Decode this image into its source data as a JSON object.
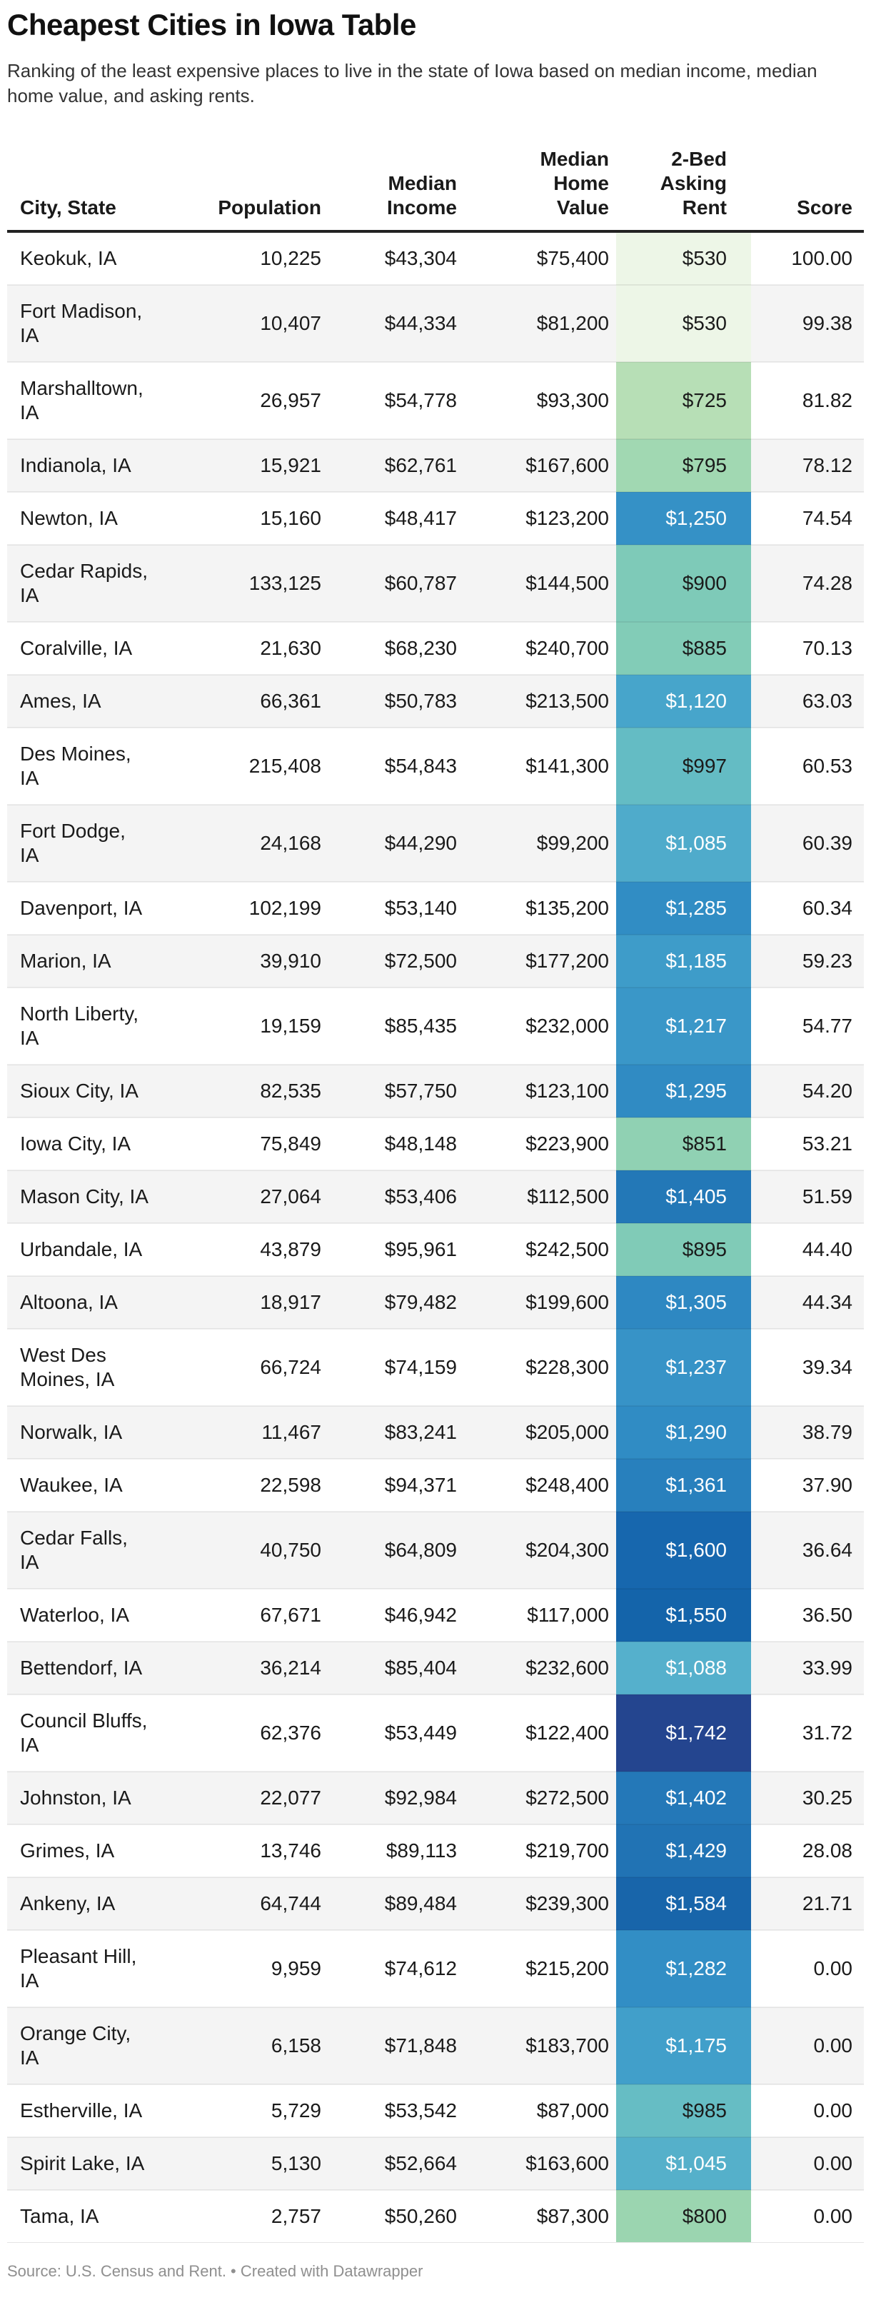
{
  "header": {
    "title": "Cheapest Cities in Iowa Table",
    "subtitle": "Ranking of the least expensive places to live in the state of Iowa based on median income, median home value, and asking rents."
  },
  "footer": {
    "source_note": "Source: U.S. Census and Rent. • Created with Datawrapper"
  },
  "colors": {
    "header_rule": "#222222",
    "row_stripe": "#f4f4f4",
    "body_text": "#1a1a1a",
    "subtitle_text": "#333333",
    "footer_text": "#8f8f8f",
    "rent_scale_min": "#edf6e7",
    "rent_scale_max": "#24458f"
  },
  "table": {
    "columns": [
      {
        "label": "City, State"
      },
      {
        "label": "Population"
      },
      {
        "label": "Median\nIncome"
      },
      {
        "label": "Median\nHome\nValue"
      },
      {
        "label": "2-Bed\nAsking\nRent"
      },
      {
        "label": "Score"
      }
    ],
    "rows": [
      {
        "city": "Keokuk, IA",
        "population": "10,225",
        "income": "$43,304",
        "home_value": "$75,400",
        "rent": "$530",
        "score": "100.00",
        "rent_bg": "#edf6e7",
        "rent_fg": "#1a1a1a"
      },
      {
        "city": "Fort Madison, IA",
        "population": "10,407",
        "income": "$44,334",
        "home_value": "$81,200",
        "rent": "$530",
        "score": "99.38",
        "rent_bg": "#edf6e7",
        "rent_fg": "#1a1a1a"
      },
      {
        "city": "Marshalltown, IA",
        "population": "26,957",
        "income": "$54,778",
        "home_value": "$93,300",
        "rent": "$725",
        "score": "81.82",
        "rent_bg": "#b7dfb6",
        "rent_fg": "#1a1a1a"
      },
      {
        "city": "Indianola, IA",
        "population": "15,921",
        "income": "$62,761",
        "home_value": "$167,600",
        "rent": "$795",
        "score": "78.12",
        "rent_bg": "#a1d8b2",
        "rent_fg": "#1a1a1a"
      },
      {
        "city": "Newton, IA",
        "population": "15,160",
        "income": "$48,417",
        "home_value": "$123,200",
        "rent": "$1,250",
        "score": "74.54",
        "rent_bg": "#3591c6",
        "rent_fg": "#ffffff"
      },
      {
        "city": "Cedar Rapids, IA",
        "population": "133,125",
        "income": "$60,787",
        "home_value": "$144,500",
        "rent": "$900",
        "score": "74.28",
        "rent_bg": "#7ecab8",
        "rent_fg": "#1a1a1a"
      },
      {
        "city": "Coralville, IA",
        "population": "21,630",
        "income": "$68,230",
        "home_value": "$240,700",
        "rent": "$885",
        "score": "70.13",
        "rent_bg": "#82ccb7",
        "rent_fg": "#1a1a1a"
      },
      {
        "city": "Ames, IA",
        "population": "66,361",
        "income": "$50,783",
        "home_value": "$213,500",
        "rent": "$1,120",
        "score": "63.03",
        "rent_bg": "#47a5cb",
        "rent_fg": "#ffffff"
      },
      {
        "city": "Des Moines, IA",
        "population": "215,408",
        "income": "$54,843",
        "home_value": "$141,300",
        "rent": "$997",
        "score": "60.53",
        "rent_bg": "#64bcc4",
        "rent_fg": "#1a1a1a"
      },
      {
        "city": "Fort Dodge, IA",
        "population": "24,168",
        "income": "$44,290",
        "home_value": "$99,200",
        "rent": "$1,085",
        "score": "60.39",
        "rent_bg": "#4fabcb",
        "rent_fg": "#ffffff"
      },
      {
        "city": "Davenport, IA",
        "population": "102,199",
        "income": "$53,140",
        "home_value": "$135,200",
        "rent": "$1,285",
        "score": "60.34",
        "rent_bg": "#318dc4",
        "rent_fg": "#ffffff"
      },
      {
        "city": "Marion, IA",
        "population": "39,910",
        "income": "$72,500",
        "home_value": "$177,200",
        "rent": "$1,185",
        "score": "59.23",
        "rent_bg": "#3e9cc9",
        "rent_fg": "#ffffff"
      },
      {
        "city": "North Liberty, IA",
        "population": "19,159",
        "income": "$85,435",
        "home_value": "$232,000",
        "rent": "$1,217",
        "score": "54.77",
        "rent_bg": "#3a97c8",
        "rent_fg": "#ffffff"
      },
      {
        "city": "Sioux City, IA",
        "population": "82,535",
        "income": "$57,750",
        "home_value": "$123,100",
        "rent": "$1,295",
        "score": "54.20",
        "rent_bg": "#308bc3",
        "rent_fg": "#ffffff"
      },
      {
        "city": "Iowa City, IA",
        "population": "75,849",
        "income": "$48,148",
        "home_value": "$223,900",
        "rent": "$851",
        "score": "53.21",
        "rent_bg": "#90d1b3",
        "rent_fg": "#1a1a1a"
      },
      {
        "city": "Mason City, IA",
        "population": "27,064",
        "income": "$53,406",
        "home_value": "$112,500",
        "rent": "$1,405",
        "score": "51.59",
        "rent_bg": "#2378b7",
        "rent_fg": "#ffffff"
      },
      {
        "city": "Urbandale, IA",
        "population": "43,879",
        "income": "$95,961",
        "home_value": "$242,500",
        "rent": "$895",
        "score": "44.40",
        "rent_bg": "#80cbb7",
        "rent_fg": "#1a1a1a"
      },
      {
        "city": "Altoona, IA",
        "population": "18,917",
        "income": "$79,482",
        "home_value": "$199,600",
        "rent": "$1,305",
        "score": "44.34",
        "rent_bg": "#2e88c2",
        "rent_fg": "#ffffff"
      },
      {
        "city": "West Des Moines, IA",
        "population": "66,724",
        "income": "$74,159",
        "home_value": "$228,300",
        "rent": "$1,237",
        "score": "39.34",
        "rent_bg": "#3793c7",
        "rent_fg": "#ffffff"
      },
      {
        "city": "Norwalk, IA",
        "population": "11,467",
        "income": "$83,241",
        "home_value": "$205,000",
        "rent": "$1,290",
        "score": "38.79",
        "rent_bg": "#308cc4",
        "rent_fg": "#ffffff"
      },
      {
        "city": "Waukee, IA",
        "population": "22,598",
        "income": "$94,371",
        "home_value": "$248,400",
        "rent": "$1,361",
        "score": "37.90",
        "rent_bg": "#2880bd",
        "rent_fg": "#ffffff"
      },
      {
        "city": "Cedar Falls, IA",
        "population": "40,750",
        "income": "$64,809",
        "home_value": "$204,300",
        "rent": "$1,600",
        "score": "36.64",
        "rent_bg": "#1767ae",
        "rent_fg": "#ffffff"
      },
      {
        "city": "Waterloo, IA",
        "population": "67,671",
        "income": "$46,942",
        "home_value": "$117,000",
        "rent": "$1,550",
        "score": "36.50",
        "rent_bg": "#1464aa",
        "rent_fg": "#ffffff"
      },
      {
        "city": "Bettendorf, IA",
        "population": "36,214",
        "income": "$85,404",
        "home_value": "$232,600",
        "rent": "$1,088",
        "score": "33.99",
        "rent_bg": "#55b0cc",
        "rent_fg": "#ffffff"
      },
      {
        "city": "Council Bluffs, IA",
        "population": "62,376",
        "income": "$53,449",
        "home_value": "$122,400",
        "rent": "$1,742",
        "score": "31.72",
        "rent_bg": "#24458f",
        "rent_fg": "#ffffff"
      },
      {
        "city": "Johnston, IA",
        "population": "22,077",
        "income": "$92,984",
        "home_value": "$272,500",
        "rent": "$1,402",
        "score": "30.25",
        "rent_bg": "#2478b8",
        "rent_fg": "#ffffff"
      },
      {
        "city": "Grimes, IA",
        "population": "13,746",
        "income": "$89,113",
        "home_value": "$219,700",
        "rent": "$1,429",
        "score": "28.08",
        "rent_bg": "#2173b4",
        "rent_fg": "#ffffff"
      },
      {
        "city": "Ankeny, IA",
        "population": "64,744",
        "income": "$89,484",
        "home_value": "$239,300",
        "rent": "$1,584",
        "score": "21.71",
        "rent_bg": "#1865aa",
        "rent_fg": "#ffffff"
      },
      {
        "city": "Pleasant Hill, IA",
        "population": "9,959",
        "income": "$74,612",
        "home_value": "$215,200",
        "rent": "$1,282",
        "score": "0.00",
        "rent_bg": "#328ec5",
        "rent_fg": "#ffffff"
      },
      {
        "city": "Orange City, IA",
        "population": "6,158",
        "income": "$71,848",
        "home_value": "$183,700",
        "rent": "$1,175",
        "score": "0.00",
        "rent_bg": "#419fca",
        "rent_fg": "#ffffff"
      },
      {
        "city": "Estherville, IA",
        "population": "5,729",
        "income": "$53,542",
        "home_value": "$87,000",
        "rent": "$985",
        "score": "0.00",
        "rent_bg": "#66bdc4",
        "rent_fg": "#1a1a1a"
      },
      {
        "city": "Spirit Lake, IA",
        "population": "5,130",
        "income": "$52,664",
        "home_value": "$163,600",
        "rent": "$1,045",
        "score": "0.00",
        "rent_bg": "#55b0ca",
        "rent_fg": "#ffffff"
      },
      {
        "city": "Tama, IA",
        "population": "2,757",
        "income": "$50,260",
        "home_value": "$87,300",
        "rent": "$800",
        "score": "0.00",
        "rent_bg": "#9bd5b0",
        "rent_fg": "#1a1a1a"
      }
    ]
  },
  "chart_data": {
    "type": "table",
    "title": "Cheapest Cities in Iowa Table",
    "subtitle": "Ranking of the least expensive places to live in the state of Iowa based on median income, median home value, and asking rents.",
    "columns": [
      "City, State",
      "Population",
      "Median Income",
      "Median Home Value",
      "2-Bed Asking Rent",
      "Score"
    ],
    "heatmap_column": "2-Bed Asking Rent",
    "heatmap_scale": {
      "low_color": "#edf6e7",
      "mid_color": "#4eb3d3",
      "high_color": "#24458f",
      "low_value": 530,
      "high_value": 1742
    },
    "rows": [
      [
        "Keokuk, IA",
        10225,
        43304,
        75400,
        530,
        100.0
      ],
      [
        "Fort Madison, IA",
        10407,
        44334,
        81200,
        530,
        99.38
      ],
      [
        "Marshalltown, IA",
        26957,
        54778,
        93300,
        725,
        81.82
      ],
      [
        "Indianola, IA",
        15921,
        62761,
        167600,
        795,
        78.12
      ],
      [
        "Newton, IA",
        15160,
        48417,
        123200,
        1250,
        74.54
      ],
      [
        "Cedar Rapids, IA",
        133125,
        60787,
        144500,
        900,
        74.28
      ],
      [
        "Coralville, IA",
        21630,
        68230,
        240700,
        885,
        70.13
      ],
      [
        "Ames, IA",
        66361,
        50783,
        213500,
        1120,
        63.03
      ],
      [
        "Des Moines, IA",
        215408,
        54843,
        141300,
        997,
        60.53
      ],
      [
        "Fort Dodge, IA",
        24168,
        44290,
        99200,
        1085,
        60.39
      ],
      [
        "Davenport, IA",
        102199,
        53140,
        135200,
        1285,
        60.34
      ],
      [
        "Marion, IA",
        39910,
        72500,
        177200,
        1185,
        59.23
      ],
      [
        "North Liberty, IA",
        19159,
        85435,
        232000,
        1217,
        54.77
      ],
      [
        "Sioux City, IA",
        82535,
        57750,
        123100,
        1295,
        54.2
      ],
      [
        "Iowa City, IA",
        75849,
        48148,
        223900,
        851,
        53.21
      ],
      [
        "Mason City, IA",
        27064,
        53406,
        112500,
        1405,
        51.59
      ],
      [
        "Urbandale, IA",
        43879,
        95961,
        242500,
        895,
        44.4
      ],
      [
        "Altoona, IA",
        18917,
        79482,
        199600,
        1305,
        44.34
      ],
      [
        "West Des Moines, IA",
        66724,
        74159,
        228300,
        1237,
        39.34
      ],
      [
        "Norwalk, IA",
        11467,
        83241,
        205000,
        1290,
        38.79
      ],
      [
        "Waukee, IA",
        22598,
        94371,
        248400,
        1361,
        37.9
      ],
      [
        "Cedar Falls, IA",
        40750,
        64809,
        204300,
        1600,
        36.64
      ],
      [
        "Waterloo, IA",
        67671,
        46942,
        117000,
        1550,
        36.5
      ],
      [
        "Bettendorf, IA",
        36214,
        85404,
        232600,
        1088,
        33.99
      ],
      [
        "Council Bluffs, IA",
        62376,
        53449,
        122400,
        1742,
        31.72
      ],
      [
        "Johnston, IA",
        22077,
        92984,
        272500,
        1402,
        30.25
      ],
      [
        "Grimes, IA",
        13746,
        89113,
        219700,
        1429,
        28.08
      ],
      [
        "Ankeny, IA",
        64744,
        89484,
        239300,
        1584,
        21.71
      ],
      [
        "Pleasant Hill, IA",
        9959,
        74612,
        215200,
        1282,
        0.0
      ],
      [
        "Orange City, IA",
        6158,
        71848,
        183700,
        1175,
        0.0
      ],
      [
        "Estherville, IA",
        5729,
        53542,
        87000,
        985,
        0.0
      ],
      [
        "Spirit Lake, IA",
        5130,
        52664,
        163600,
        1045,
        0.0
      ],
      [
        "Tama, IA",
        2757,
        50260,
        87300,
        800,
        0.0
      ]
    ],
    "source": "Source: U.S. Census and Rent.",
    "attribution": "Created with Datawrapper"
  }
}
